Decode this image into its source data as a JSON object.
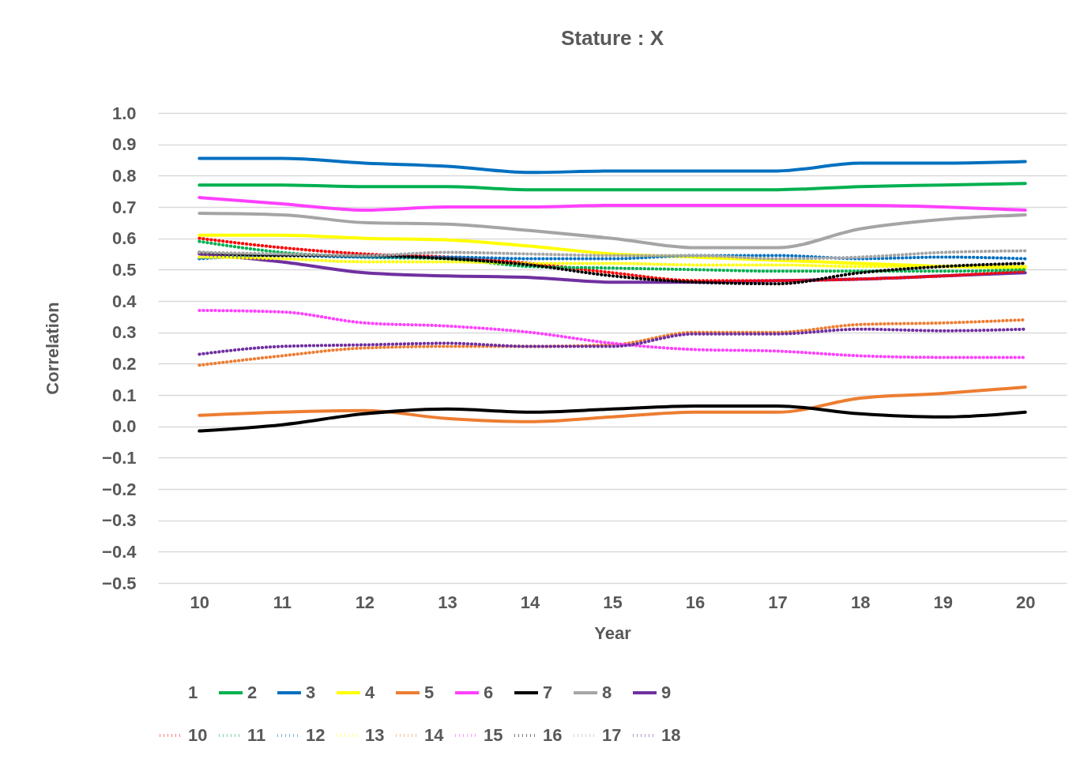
{
  "chart_data": {
    "type": "line",
    "title": "Stature : X",
    "xlabel": "Year",
    "ylabel": "Correlation",
    "x": [
      10,
      11,
      12,
      13,
      14,
      15,
      16,
      17,
      18,
      19,
      20
    ],
    "xlim": [
      9.5,
      20.5
    ],
    "xticks": [
      10,
      11,
      12,
      13,
      14,
      15,
      16,
      17,
      18,
      19,
      20
    ],
    "ylim": [
      -0.5,
      1.0
    ],
    "yticks": [
      {
        "value": 1.0,
        "label": "1.0"
      },
      0.9,
      0.8,
      0.7,
      0.6,
      0.5,
      0.4,
      0.3,
      0.2,
      0.1,
      {
        "value": 0,
        "label": "0.0"
      },
      -0.1,
      -0.2,
      -0.3,
      -0.4,
      -0.5
    ],
    "grid": "y",
    "legend": "bottom",
    "marker": "none",
    "series": [
      {
        "name": "1",
        "line_style": "solid",
        "values": [
          null,
          null,
          null,
          null,
          null,
          null,
          null,
          null,
          null,
          null,
          null
        ]
      },
      {
        "name": "2",
        "color": "#00b050",
        "line_style": "solid",
        "values": [
          0.77,
          0.77,
          0.765,
          0.765,
          0.755,
          0.755,
          0.755,
          0.755,
          0.765,
          0.77,
          0.775
        ]
      },
      {
        "name": "3",
        "color": "#0070c0",
        "line_style": "solid",
        "values": [
          0.855,
          0.855,
          0.84,
          0.83,
          0.81,
          0.815,
          0.815,
          0.815,
          0.84,
          0.84,
          0.845
        ]
      },
      {
        "name": "4",
        "color": "#ffff00",
        "line_style": "solid",
        "values": [
          0.61,
          0.61,
          0.6,
          0.595,
          0.575,
          0.55,
          0.54,
          0.53,
          0.52,
          0.51,
          0.505
        ]
      },
      {
        "name": "5",
        "color": "#ed7d31",
        "line_style": "solid",
        "values": [
          0.035,
          0.045,
          0.05,
          0.025,
          0.015,
          0.03,
          0.045,
          0.045,
          0.09,
          0.105,
          0.125
        ]
      },
      {
        "name": "6",
        "color": "#ff40ff",
        "line_style": "solid",
        "values": [
          0.73,
          0.71,
          0.69,
          0.7,
          0.7,
          0.705,
          0.705,
          0.705,
          0.705,
          0.7,
          0.69
        ]
      },
      {
        "name": "7",
        "color": "#000000",
        "line_style": "solid",
        "values": [
          -0.015,
          0.005,
          0.04,
          0.055,
          0.045,
          0.055,
          0.065,
          0.065,
          0.04,
          0.03,
          0.045
        ]
      },
      {
        "name": "8",
        "color": "#a5a5a5",
        "line_style": "solid",
        "values": [
          0.68,
          0.675,
          0.65,
          0.645,
          0.625,
          0.6,
          0.57,
          0.57,
          0.63,
          0.66,
          0.675
        ]
      },
      {
        "name": "9",
        "color": "#7030a0",
        "line_style": "solid",
        "values": [
          0.55,
          0.525,
          0.49,
          0.48,
          0.475,
          0.46,
          0.46,
          0.465,
          0.47,
          0.48,
          0.49
        ]
      },
      {
        "name": "10",
        "color": "#ff0000",
        "line_style": "dotted",
        "values": [
          0.6,
          0.57,
          0.55,
          0.54,
          0.52,
          0.49,
          0.465,
          0.465,
          0.47,
          0.48,
          0.495
        ]
      },
      {
        "name": "11",
        "color": "#00b050",
        "line_style": "dotted",
        "values": [
          0.59,
          0.555,
          0.54,
          0.535,
          0.51,
          0.505,
          0.5,
          0.495,
          0.495,
          0.495,
          0.5
        ]
      },
      {
        "name": "12",
        "color": "#0070c0",
        "line_style": "dotted",
        "values": [
          0.535,
          0.545,
          0.54,
          0.54,
          0.535,
          0.535,
          0.545,
          0.545,
          0.535,
          0.54,
          0.535
        ]
      },
      {
        "name": "13",
        "color": "#ffff00",
        "line_style": "dotted",
        "values": [
          0.54,
          0.535,
          0.525,
          0.525,
          0.52,
          0.52,
          0.515,
          0.515,
          0.51,
          0.51,
          0.51
        ]
      },
      {
        "name": "14",
        "color": "#ed7d31",
        "line_style": "dotted",
        "values": [
          0.195,
          0.225,
          0.25,
          0.255,
          0.255,
          0.26,
          0.3,
          0.3,
          0.325,
          0.33,
          0.34
        ]
      },
      {
        "name": "15",
        "color": "#ff40ff",
        "line_style": "dotted",
        "values": [
          0.37,
          0.365,
          0.33,
          0.32,
          0.3,
          0.265,
          0.245,
          0.24,
          0.225,
          0.22,
          0.22
        ]
      },
      {
        "name": "16",
        "color": "#000000",
        "line_style": "dotted",
        "values": [
          0.555,
          0.545,
          0.545,
          0.535,
          0.515,
          0.48,
          0.46,
          0.455,
          0.49,
          0.51,
          0.52
        ]
      },
      {
        "name": "17",
        "color": "#a5a5a5",
        "line_style": "dotted",
        "values": [
          0.555,
          0.55,
          0.545,
          0.555,
          0.55,
          0.545,
          0.545,
          0.535,
          0.54,
          0.555,
          0.56
        ]
      },
      {
        "name": "18",
        "color": "#7030a0",
        "line_style": "dotted",
        "values": [
          0.23,
          0.255,
          0.26,
          0.265,
          0.255,
          0.255,
          0.295,
          0.295,
          0.31,
          0.305,
          0.31
        ]
      }
    ]
  }
}
